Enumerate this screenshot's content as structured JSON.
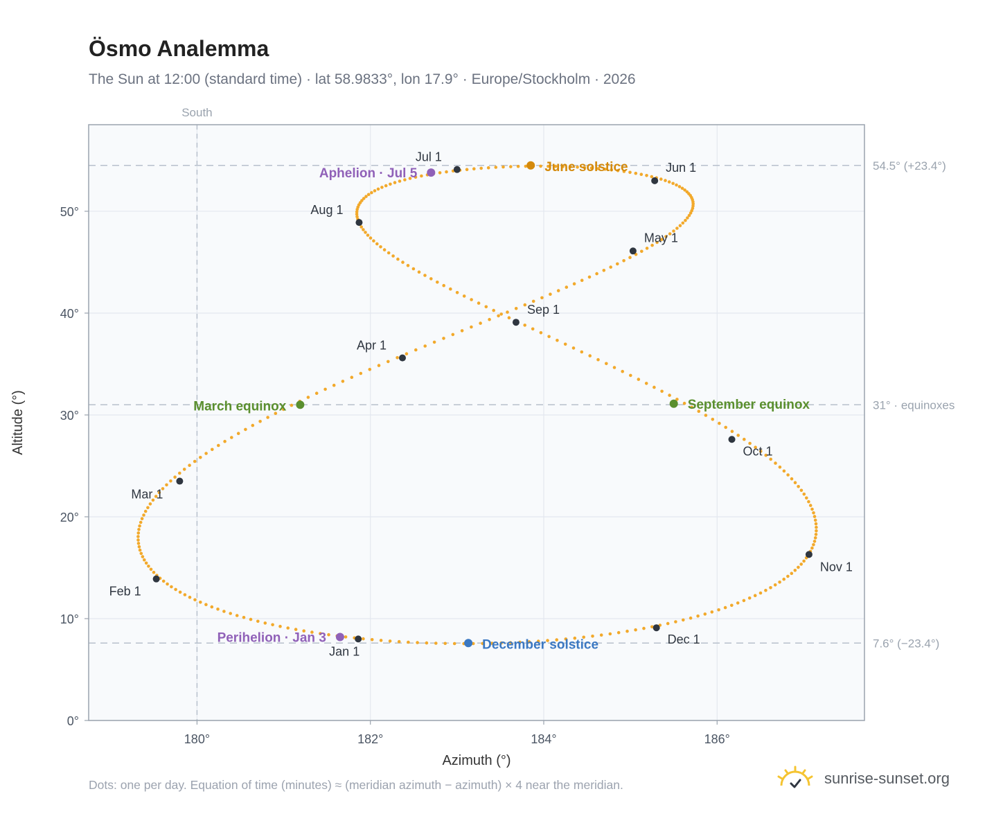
{
  "title": "Ösmo Analemma",
  "subtitle": "The Sun at 12:00 (standard time) · lat 58.9833°, lon 17.9° · Europe/Stockholm · 2026",
  "footnote": "Dots: one per day. Equation of time (minutes) ≈ (meridian azimuth − azimuth) × 4 near the meridian.",
  "brand": {
    "name": "sunrise-sunset.org",
    "icon": "sun-logo-icon"
  },
  "colors": {
    "curve": "#f2a92b",
    "month_marker": "#2f3640",
    "june_solstice": "#d48a0c",
    "december_solstice": "#3b78c2",
    "equinox": "#5a8f2e",
    "apsis": "#9061b8",
    "plot_bg": "#f8fafc",
    "grid": "#e3e8ef",
    "ref_line": "#b7c0cc"
  },
  "chart_data": {
    "type": "scatter",
    "xlabel": "Azimuth (°)",
    "ylabel": "Altitude (°)",
    "xlim": [
      178.75,
      187.7
    ],
    "ylim": [
      0,
      58.5
    ],
    "x_ticks": [
      180,
      182,
      184,
      186
    ],
    "x_tick_labels": [
      "180°",
      "182°",
      "184°",
      "186°"
    ],
    "y_ticks": [
      0,
      10,
      20,
      30,
      40,
      50
    ],
    "y_tick_labels": [
      "0°",
      "10°",
      "20°",
      "30°",
      "40°",
      "50°"
    ],
    "grid": true,
    "vertical_reference": {
      "x": 180,
      "label": "South"
    },
    "horizontal_references": [
      {
        "y": 54.5,
        "label": "54.5° (+23.4°)"
      },
      {
        "y": 31,
        "label": "31° · equinoxes"
      },
      {
        "y": 7.6,
        "label": "7.6° (−23.4°)"
      }
    ],
    "series_note": "one dot per day",
    "month_markers": [
      {
        "label": "Jan 1",
        "azimuth": 181.86,
        "altitude": 8.0
      },
      {
        "label": "Feb 1",
        "azimuth": 179.53,
        "altitude": 13.9
      },
      {
        "label": "Mar 1",
        "azimuth": 179.8,
        "altitude": 23.5
      },
      {
        "label": "Apr 1",
        "azimuth": 182.37,
        "altitude": 35.6
      },
      {
        "label": "May 1",
        "azimuth": 185.03,
        "altitude": 46.1
      },
      {
        "label": "Jun 1",
        "azimuth": 185.28,
        "altitude": 53.0
      },
      {
        "label": "Jul 1",
        "azimuth": 183.0,
        "altitude": 54.1
      },
      {
        "label": "Aug 1",
        "azimuth": 181.87,
        "altitude": 48.9
      },
      {
        "label": "Sep 1",
        "azimuth": 183.68,
        "altitude": 39.1
      },
      {
        "label": "Oct 1",
        "azimuth": 186.17,
        "altitude": 27.6
      },
      {
        "label": "Nov 1",
        "azimuth": 187.06,
        "altitude": 16.3
      },
      {
        "label": "Dec 1",
        "azimuth": 185.3,
        "altitude": 9.1
      }
    ],
    "events": [
      {
        "label": "June solstice",
        "azimuth": 183.85,
        "altitude": 54.5,
        "kind": "june_solstice"
      },
      {
        "label": "December solstice",
        "azimuth": 183.13,
        "altitude": 7.6,
        "kind": "december_solstice"
      },
      {
        "label": "March equinox",
        "azimuth": 181.19,
        "altitude": 31.0,
        "kind": "equinox"
      },
      {
        "label": "September equinox",
        "azimuth": 185.5,
        "altitude": 31.1,
        "kind": "equinox"
      },
      {
        "label": "Aphelion · Jul 5",
        "azimuth": 182.7,
        "altitude": 53.8,
        "kind": "apsis"
      },
      {
        "label": "Perihelion · Jan 3",
        "azimuth": 181.65,
        "altitude": 8.2,
        "kind": "apsis"
      }
    ]
  }
}
